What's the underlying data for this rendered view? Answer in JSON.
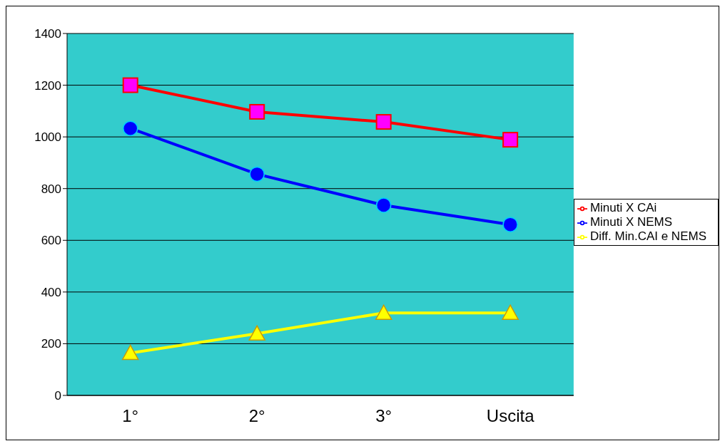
{
  "chart_data": {
    "type": "line",
    "categories": [
      "1°",
      "2°",
      "3°",
      "Uscita"
    ],
    "series": [
      {
        "name": "Minuti X CAi",
        "color": "#ff0000",
        "marker": "square",
        "values": [
          1200,
          1097,
          1058,
          989
        ]
      },
      {
        "name": "Minuti X NEMS",
        "color": "#0000ff",
        "marker": "circle",
        "values": [
          1033,
          856,
          736,
          661
        ]
      },
      {
        "name": "Diff. Min.CAI e NEMS",
        "color": "#ffff00",
        "marker": "triangle",
        "values": [
          164,
          239,
          319,
          319
        ]
      }
    ],
    "ylim": [
      0,
      1400
    ],
    "yticks": [
      0,
      200,
      400,
      600,
      800,
      1000,
      1200,
      1400
    ],
    "grid": "y",
    "legend": "right"
  }
}
